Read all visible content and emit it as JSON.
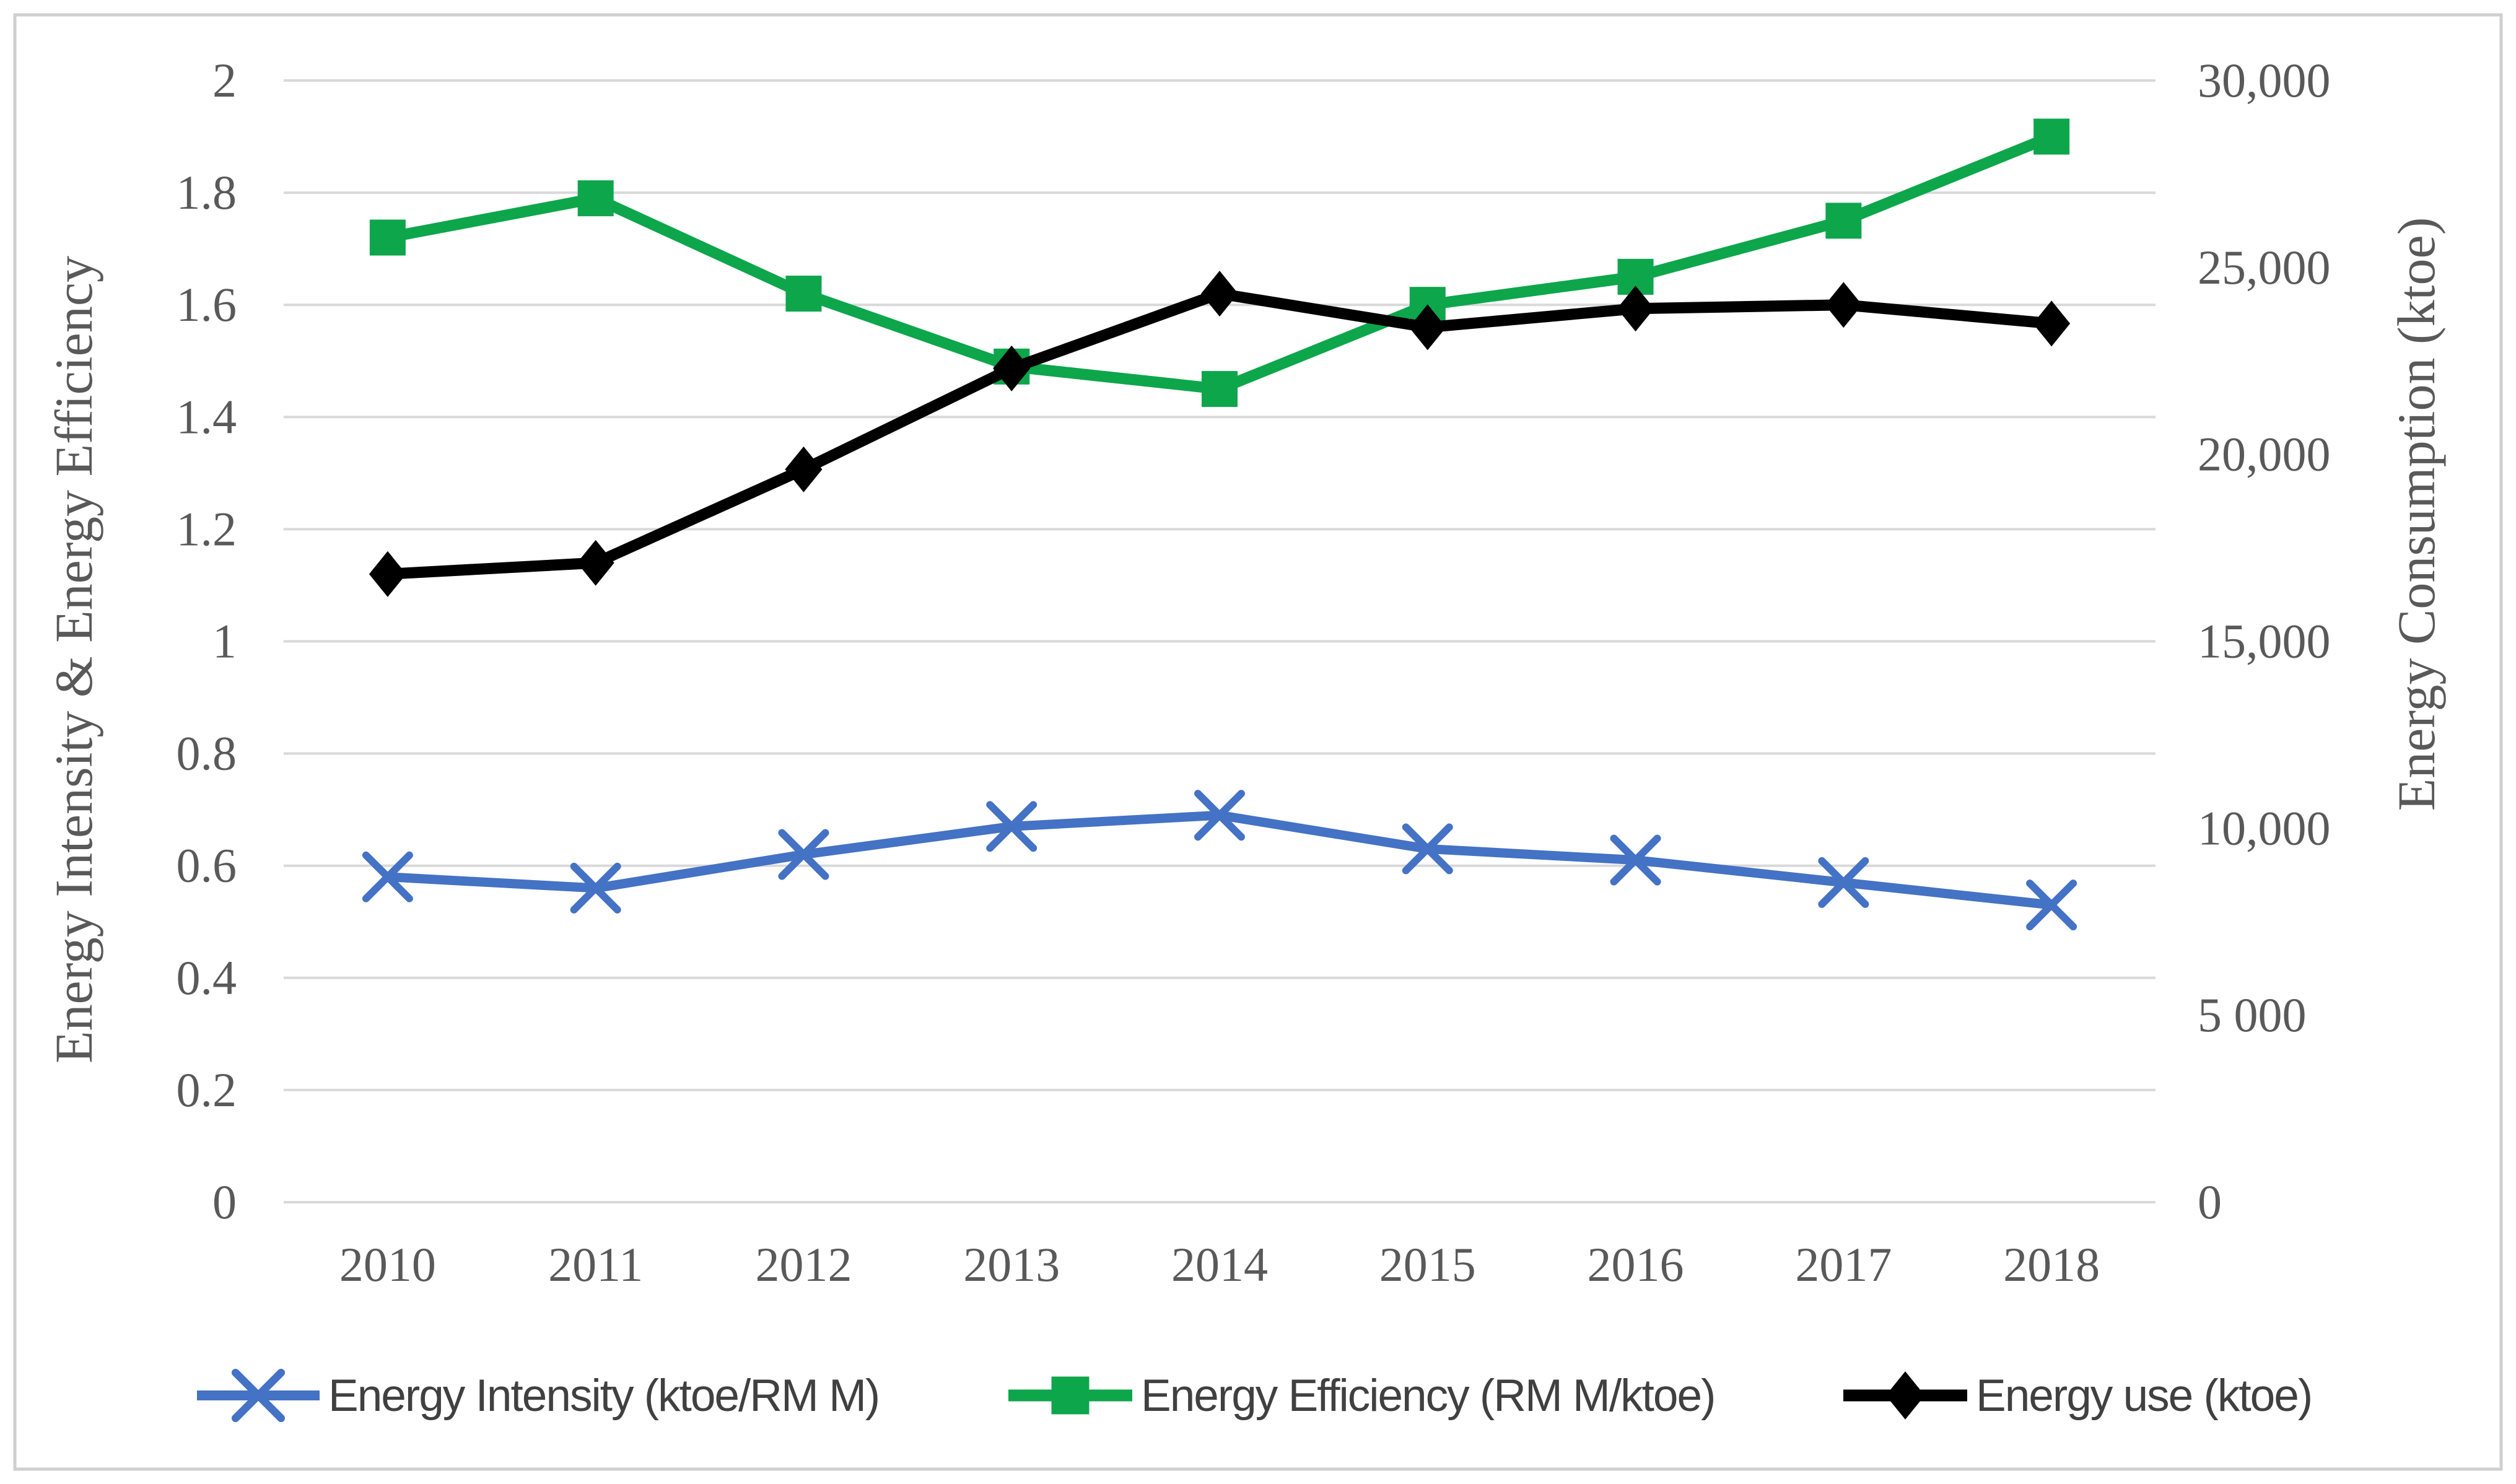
{
  "chart_data": {
    "type": "line",
    "title": "",
    "categories": [
      "2010",
      "2011",
      "2012",
      "2013",
      "2014",
      "2015",
      "2016",
      "2017",
      "2018"
    ],
    "left_axis": {
      "title": "Energy Intensity & Energy Efficiency",
      "min": 0,
      "max": 2,
      "tick_step": 0.2,
      "tick_labels": [
        "2",
        "1.8",
        "1.6",
        "1.4",
        "1.2",
        "1",
        "0.8",
        "0.6",
        "0.4",
        "0.2",
        "0"
      ]
    },
    "right_axis": {
      "title": "Energy Consumption (ktoe)",
      "min": 0,
      "max": 30000,
      "tick_labels": [
        "30,000",
        "25,000",
        "20,000",
        "15,000",
        "10,000",
        "5 000",
        "0"
      ]
    },
    "grid": "horizontal-only",
    "legend_position": "bottom-center",
    "series": [
      {
        "name": "Energy Intensity (ktoe/RM M)",
        "axis": "left",
        "color": "#4472C4",
        "marker": "x-cross",
        "values": [
          0.58,
          0.56,
          0.62,
          0.67,
          0.69,
          0.63,
          0.61,
          0.57,
          0.53
        ]
      },
      {
        "name": "Energy Efficiency (RM M/ktoe)",
        "axis": "left",
        "color": "#0DA64B",
        "marker": "square",
        "values": [
          1.72,
          1.79,
          1.62,
          1.49,
          1.45,
          1.6,
          1.65,
          1.75,
          1.9
        ]
      },
      {
        "name": "Energy use (ktoe)",
        "axis": "right",
        "color": "#000000",
        "marker": "diamond",
        "values": [
          16800,
          17100,
          19600,
          22300,
          24300,
          23400,
          23900,
          24000,
          23500
        ]
      }
    ],
    "style": {
      "gridline_color": "#D9D9D9",
      "border_color": "#CFCFCF",
      "tick_label_color": "#595959",
      "axis_title_color": "#595959",
      "legend_text_color": "#404040",
      "background_color": "#FFFFFF"
    }
  }
}
